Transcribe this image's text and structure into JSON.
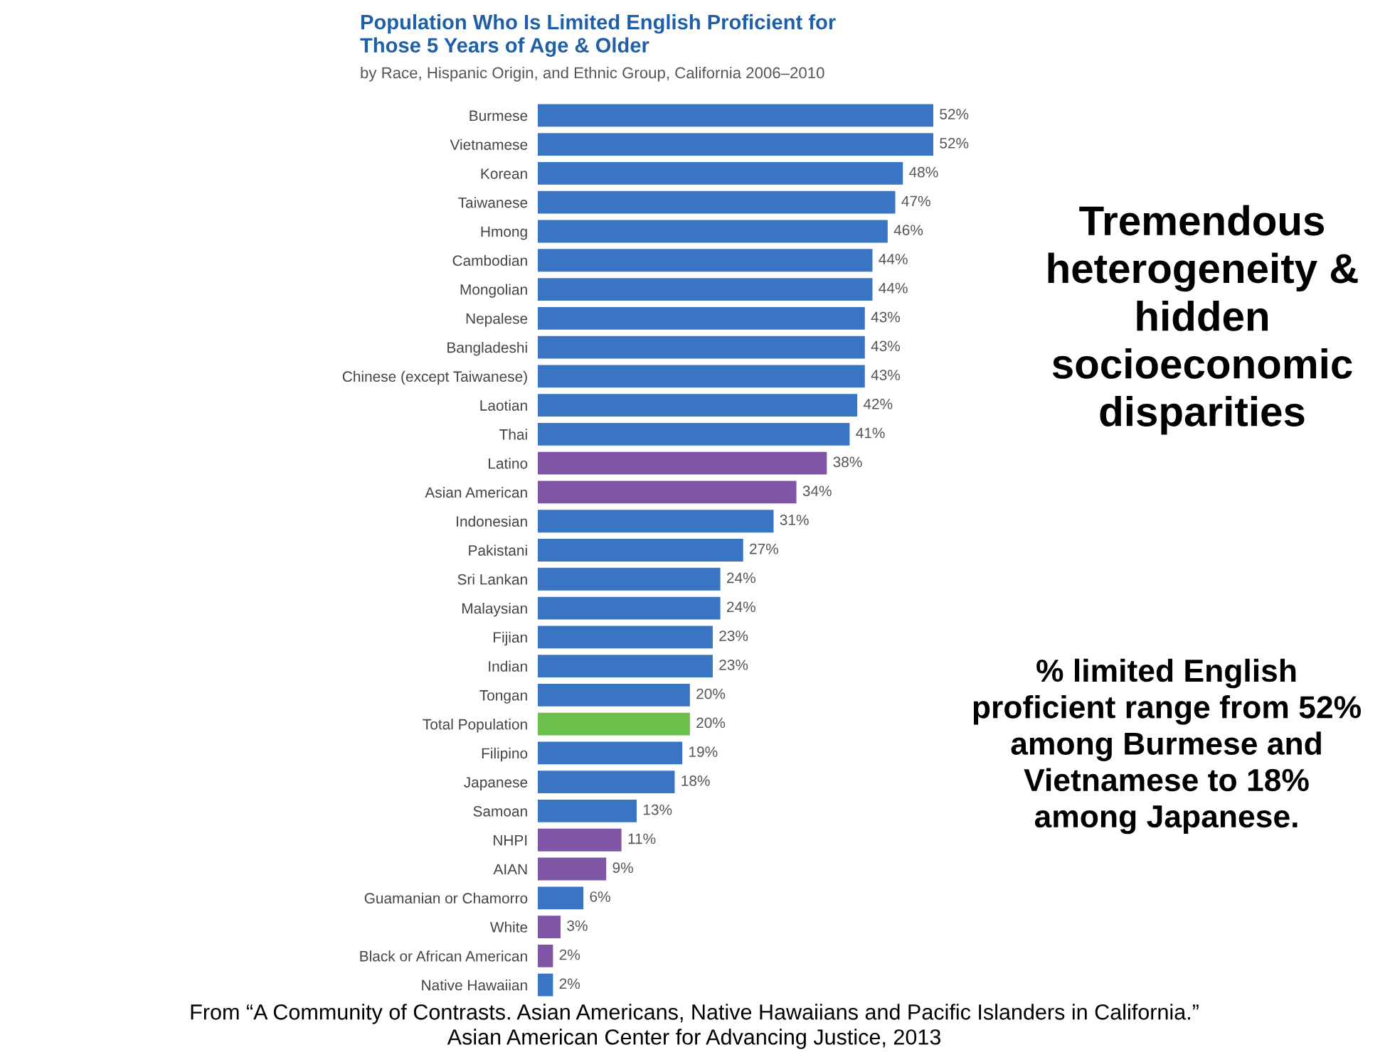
{
  "chart_data": {
    "type": "bar",
    "orientation": "horizontal",
    "title": "Population Who Is Limited English Proficient for\nThose 5 Years of Age & Older",
    "subtitle": "by Race, Hispanic Origin, and Ethnic Group, California 2006–2010",
    "categories": [
      "Burmese",
      "Vietnamese",
      "Korean",
      "Taiwanese",
      "Hmong",
      "Cambodian",
      "Mongolian",
      "Nepalese",
      "Bangladeshi",
      "Chinese (except Taiwanese)",
      "Laotian",
      "Thai",
      "Latino",
      "Asian American",
      "Indonesian",
      "Pakistani",
      "Sri Lankan",
      "Malaysian",
      "Fijian",
      "Indian",
      "Tongan",
      "Total Population",
      "Filipino",
      "Japanese",
      "Samoan",
      "NHPI",
      "AIAN",
      "Guamanian or Chamorro",
      "White",
      "Black or African American",
      "Native Hawaiian"
    ],
    "values": [
      52,
      52,
      48,
      47,
      46,
      44,
      44,
      43,
      43,
      43,
      42,
      41,
      38,
      34,
      31,
      27,
      24,
      24,
      23,
      23,
      20,
      20,
      19,
      18,
      13,
      11,
      9,
      6,
      3,
      2,
      2
    ],
    "value_labels": [
      "52%",
      "52%",
      "48%",
      "47%",
      "46%",
      "44%",
      "44%",
      "43%",
      "43%",
      "43%",
      "42%",
      "41%",
      "38%",
      "34%",
      "31%",
      "27%",
      "24%",
      "24%",
      "23%",
      "23%",
      "20%",
      "20%",
      "19%",
      "18%",
      "13%",
      "11%",
      "9%",
      "6%",
      "3%",
      "2%",
      "2%"
    ],
    "colors": [
      "#3a75c4",
      "#3a75c4",
      "#3a75c4",
      "#3a75c4",
      "#3a75c4",
      "#3a75c4",
      "#3a75c4",
      "#3a75c4",
      "#3a75c4",
      "#3a75c4",
      "#3a75c4",
      "#3a75c4",
      "#7f56a6",
      "#7f56a6",
      "#3a75c4",
      "#3a75c4",
      "#3a75c4",
      "#3a75c4",
      "#3a75c4",
      "#3a75c4",
      "#3a75c4",
      "#6cbf4a",
      "#3a75c4",
      "#3a75c4",
      "#3a75c4",
      "#7f56a6",
      "#7f56a6",
      "#3a75c4",
      "#7f56a6",
      "#7f56a6",
      "#3a75c4"
    ],
    "tick_labels": "y",
    "grid": false,
    "legend": false,
    "annotations": [
      "Tremendous\nheterogeneity &\nhidden\nsocioeconomic\ndisparities",
      "% limited English\nproficient range from 52%\namong Burmese and\nVietnamese to 18%\namong Japanese.",
      "From “A Community of Contrasts. Asian Americans, Native Hawaiians and Pacific Islanders in California.”\nAsian American Center for Advancing Justice, 2013"
    ]
  }
}
